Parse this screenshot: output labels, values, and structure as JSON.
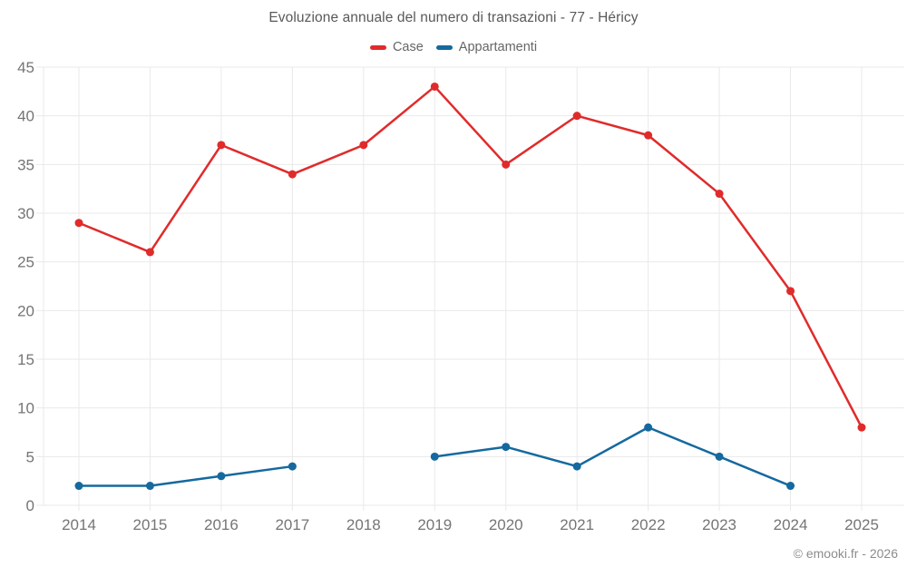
{
  "title": "Evoluzione annuale del numero di transazioni - 77 - Héricy",
  "footer": "© emooki.fr - 2026",
  "legend": {
    "items": [
      {
        "label": "Case",
        "color": "#e02b2b"
      },
      {
        "label": "Appartamenti",
        "color": "#15699f"
      }
    ]
  },
  "colors": {
    "case_red": "#e02b2b",
    "appartamenti_blue": "#15699f",
    "gridline": "#e9e9e9",
    "tick_text": "#757575",
    "title_text": "#595959",
    "legend_text": "#666666",
    "footer_text": "#8c8c8c",
    "background": "#ffffff"
  },
  "chart_data": {
    "type": "line",
    "title": "Evoluzione annuale del numero di transazioni - 77 - Héricy",
    "x": [
      2014,
      2015,
      2016,
      2017,
      2018,
      2019,
      2020,
      2021,
      2022,
      2023,
      2024,
      2025
    ],
    "series": [
      {
        "name": "Case",
        "color": "#e02b2b",
        "values": [
          29,
          26,
          37,
          34,
          37,
          43,
          35,
          40,
          38,
          32,
          22,
          8
        ]
      },
      {
        "name": "Appartamenti",
        "color": "#15699f",
        "values": [
          2,
          2,
          3,
          4,
          null,
          5,
          6,
          4,
          8,
          5,
          2,
          null
        ]
      }
    ],
    "xlabel": "",
    "ylabel": "",
    "ylim": [
      0,
      45
    ],
    "ytick_step": 5,
    "yticks": [
      0,
      5,
      10,
      15,
      20,
      25,
      30,
      35,
      40,
      45
    ],
    "grid": true,
    "legend_position": "top",
    "marker": "circle",
    "marker_radius": 4.5,
    "line_width": 2.5
  }
}
